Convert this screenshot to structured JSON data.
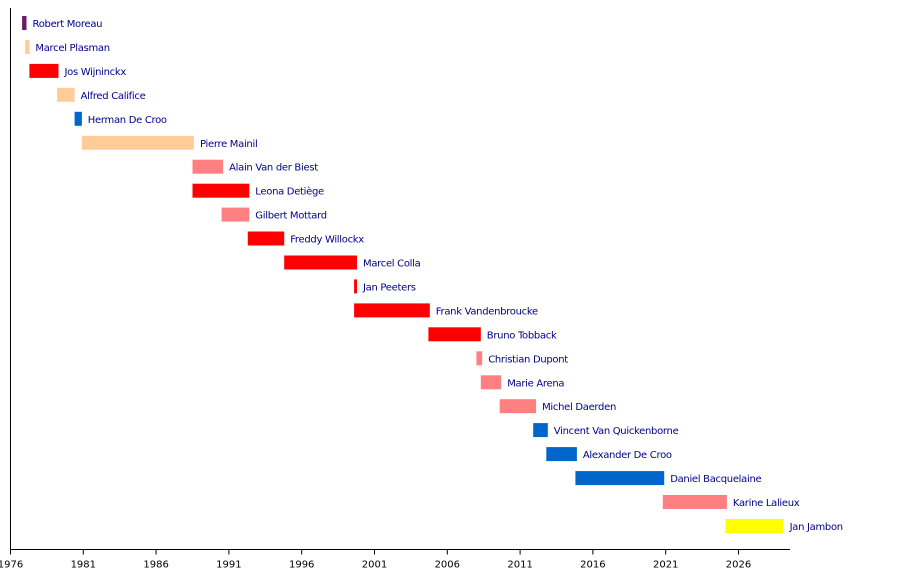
{
  "chart_data": {
    "type": "timeline",
    "title": "",
    "xlabel": "",
    "ylabel": "",
    "xlim": [
      1976,
      2030
    ],
    "xticks": [
      1976,
      1981,
      1986,
      1991,
      1996,
      2001,
      2006,
      2011,
      2016,
      2021,
      2026
    ],
    "xtick_labels": [
      "1976",
      "1981",
      "1986",
      "1991",
      "1996",
      "2001",
      "2006",
      "2011",
      "2016",
      "2021",
      "2026"
    ],
    "colors": {
      "purple": "#6a1b6a",
      "peach": "#ffcc99",
      "red": "#ff0000",
      "pink": "#ff8080",
      "blue": "#0066cc",
      "yellow": "#ffff00",
      "label": "#00008b"
    },
    "bars": [
      {
        "name": "Robert Moreau",
        "start": 1976.8,
        "end": 1977.1,
        "color": "purple"
      },
      {
        "name": "Marcel Plasman",
        "start": 1977.0,
        "end": 1977.3,
        "color": "peach"
      },
      {
        "name": "Jos Wijninckx",
        "start": 1977.3,
        "end": 1979.3,
        "color": "red"
      },
      {
        "name": "Alfred Califice",
        "start": 1979.2,
        "end": 1980.4,
        "color": "peach"
      },
      {
        "name": "Herman De Croo",
        "start": 1980.4,
        "end": 1980.9,
        "color": "blue"
      },
      {
        "name": "Pierre Mainil",
        "start": 1980.9,
        "end": 1988.6,
        "color": "peach"
      },
      {
        "name": "Alain Van der Biest",
        "start": 1988.5,
        "end": 1990.6,
        "color": "pink"
      },
      {
        "name": "Leona Detiège",
        "start": 1988.5,
        "end": 1992.4,
        "color": "red"
      },
      {
        "name": "Gilbert Mottard",
        "start": 1990.5,
        "end": 1992.4,
        "color": "pink"
      },
      {
        "name": "Freddy Willockx",
        "start": 1992.3,
        "end": 1994.8,
        "color": "red"
      },
      {
        "name": "Marcel Colla",
        "start": 1994.8,
        "end": 1999.8,
        "color": "red"
      },
      {
        "name": "Jan Peeters",
        "start": 1999.6,
        "end": 1999.8,
        "color": "red"
      },
      {
        "name": "Frank Vandenbroucke",
        "start": 1999.6,
        "end": 2004.8,
        "color": "red"
      },
      {
        "name": "Bruno Tobback",
        "start": 2004.7,
        "end": 2008.3,
        "color": "red"
      },
      {
        "name": "Christian Dupont",
        "start": 2008.0,
        "end": 2008.4,
        "color": "pink"
      },
      {
        "name": "Marie Arena",
        "start": 2008.3,
        "end": 2009.7,
        "color": "pink"
      },
      {
        "name": "Michel Daerden",
        "start": 2009.6,
        "end": 2012.1,
        "color": "pink"
      },
      {
        "name": "Vincent Van Quickenborne",
        "start": 2011.9,
        "end": 2012.9,
        "color": "blue"
      },
      {
        "name": "Alexander De Croo",
        "start": 2012.8,
        "end": 2014.9,
        "color": "blue"
      },
      {
        "name": "Daniel Bacquelaine",
        "start": 2014.8,
        "end": 2020.9,
        "color": "blue"
      },
      {
        "name": "Karine Lalieux",
        "start": 2020.8,
        "end": 2025.2,
        "color": "pink"
      },
      {
        "name": "Jan Jambon",
        "start": 2025.1,
        "end": 2029.1,
        "color": "yellow"
      }
    ]
  }
}
